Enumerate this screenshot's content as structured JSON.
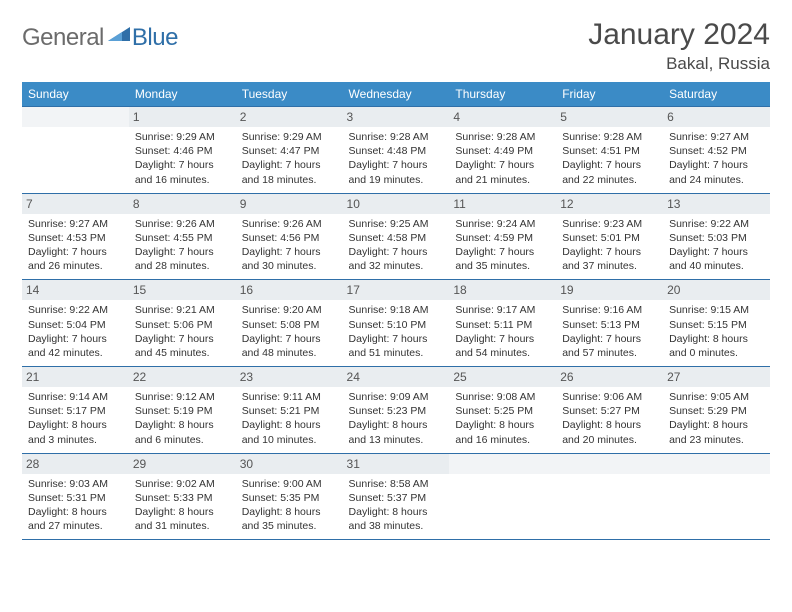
{
  "logo": {
    "general": "General",
    "blue": "Blue"
  },
  "title": "January 2024",
  "location": "Bakal, Russia",
  "colors": {
    "header_bg": "#3b8bc6",
    "header_text": "#ffffff",
    "daynum_bg": "#e9edf0",
    "border": "#2f6fa8",
    "logo_general": "#6b6b6b",
    "logo_blue": "#2f6fa8",
    "body_text": "#333333",
    "title_text": "#4a4a4a"
  },
  "weekdays": [
    "Sunday",
    "Monday",
    "Tuesday",
    "Wednesday",
    "Thursday",
    "Friday",
    "Saturday"
  ],
  "layout": {
    "first_weekday_index": 1,
    "days_in_month": 31
  },
  "days": {
    "1": {
      "sunrise": "9:29 AM",
      "sunset": "4:46 PM",
      "daylight": "7 hours and 16 minutes."
    },
    "2": {
      "sunrise": "9:29 AM",
      "sunset": "4:47 PM",
      "daylight": "7 hours and 18 minutes."
    },
    "3": {
      "sunrise": "9:28 AM",
      "sunset": "4:48 PM",
      "daylight": "7 hours and 19 minutes."
    },
    "4": {
      "sunrise": "9:28 AM",
      "sunset": "4:49 PM",
      "daylight": "7 hours and 21 minutes."
    },
    "5": {
      "sunrise": "9:28 AM",
      "sunset": "4:51 PM",
      "daylight": "7 hours and 22 minutes."
    },
    "6": {
      "sunrise": "9:27 AM",
      "sunset": "4:52 PM",
      "daylight": "7 hours and 24 minutes."
    },
    "7": {
      "sunrise": "9:27 AM",
      "sunset": "4:53 PM",
      "daylight": "7 hours and 26 minutes."
    },
    "8": {
      "sunrise": "9:26 AM",
      "sunset": "4:55 PM",
      "daylight": "7 hours and 28 minutes."
    },
    "9": {
      "sunrise": "9:26 AM",
      "sunset": "4:56 PM",
      "daylight": "7 hours and 30 minutes."
    },
    "10": {
      "sunrise": "9:25 AM",
      "sunset": "4:58 PM",
      "daylight": "7 hours and 32 minutes."
    },
    "11": {
      "sunrise": "9:24 AM",
      "sunset": "4:59 PM",
      "daylight": "7 hours and 35 minutes."
    },
    "12": {
      "sunrise": "9:23 AM",
      "sunset": "5:01 PM",
      "daylight": "7 hours and 37 minutes."
    },
    "13": {
      "sunrise": "9:22 AM",
      "sunset": "5:03 PM",
      "daylight": "7 hours and 40 minutes."
    },
    "14": {
      "sunrise": "9:22 AM",
      "sunset": "5:04 PM",
      "daylight": "7 hours and 42 minutes."
    },
    "15": {
      "sunrise": "9:21 AM",
      "sunset": "5:06 PM",
      "daylight": "7 hours and 45 minutes."
    },
    "16": {
      "sunrise": "9:20 AM",
      "sunset": "5:08 PM",
      "daylight": "7 hours and 48 minutes."
    },
    "17": {
      "sunrise": "9:18 AM",
      "sunset": "5:10 PM",
      "daylight": "7 hours and 51 minutes."
    },
    "18": {
      "sunrise": "9:17 AM",
      "sunset": "5:11 PM",
      "daylight": "7 hours and 54 minutes."
    },
    "19": {
      "sunrise": "9:16 AM",
      "sunset": "5:13 PM",
      "daylight": "7 hours and 57 minutes."
    },
    "20": {
      "sunrise": "9:15 AM",
      "sunset": "5:15 PM",
      "daylight": "8 hours and 0 minutes."
    },
    "21": {
      "sunrise": "9:14 AM",
      "sunset": "5:17 PM",
      "daylight": "8 hours and 3 minutes."
    },
    "22": {
      "sunrise": "9:12 AM",
      "sunset": "5:19 PM",
      "daylight": "8 hours and 6 minutes."
    },
    "23": {
      "sunrise": "9:11 AM",
      "sunset": "5:21 PM",
      "daylight": "8 hours and 10 minutes."
    },
    "24": {
      "sunrise": "9:09 AM",
      "sunset": "5:23 PM",
      "daylight": "8 hours and 13 minutes."
    },
    "25": {
      "sunrise": "9:08 AM",
      "sunset": "5:25 PM",
      "daylight": "8 hours and 16 minutes."
    },
    "26": {
      "sunrise": "9:06 AM",
      "sunset": "5:27 PM",
      "daylight": "8 hours and 20 minutes."
    },
    "27": {
      "sunrise": "9:05 AM",
      "sunset": "5:29 PM",
      "daylight": "8 hours and 23 minutes."
    },
    "28": {
      "sunrise": "9:03 AM",
      "sunset": "5:31 PM",
      "daylight": "8 hours and 27 minutes."
    },
    "29": {
      "sunrise": "9:02 AM",
      "sunset": "5:33 PM",
      "daylight": "8 hours and 31 minutes."
    },
    "30": {
      "sunrise": "9:00 AM",
      "sunset": "5:35 PM",
      "daylight": "8 hours and 35 minutes."
    },
    "31": {
      "sunrise": "8:58 AM",
      "sunset": "5:37 PM",
      "daylight": "8 hours and 38 minutes."
    }
  },
  "labels": {
    "sunrise": "Sunrise:",
    "sunset": "Sunset:",
    "daylight": "Daylight:"
  }
}
